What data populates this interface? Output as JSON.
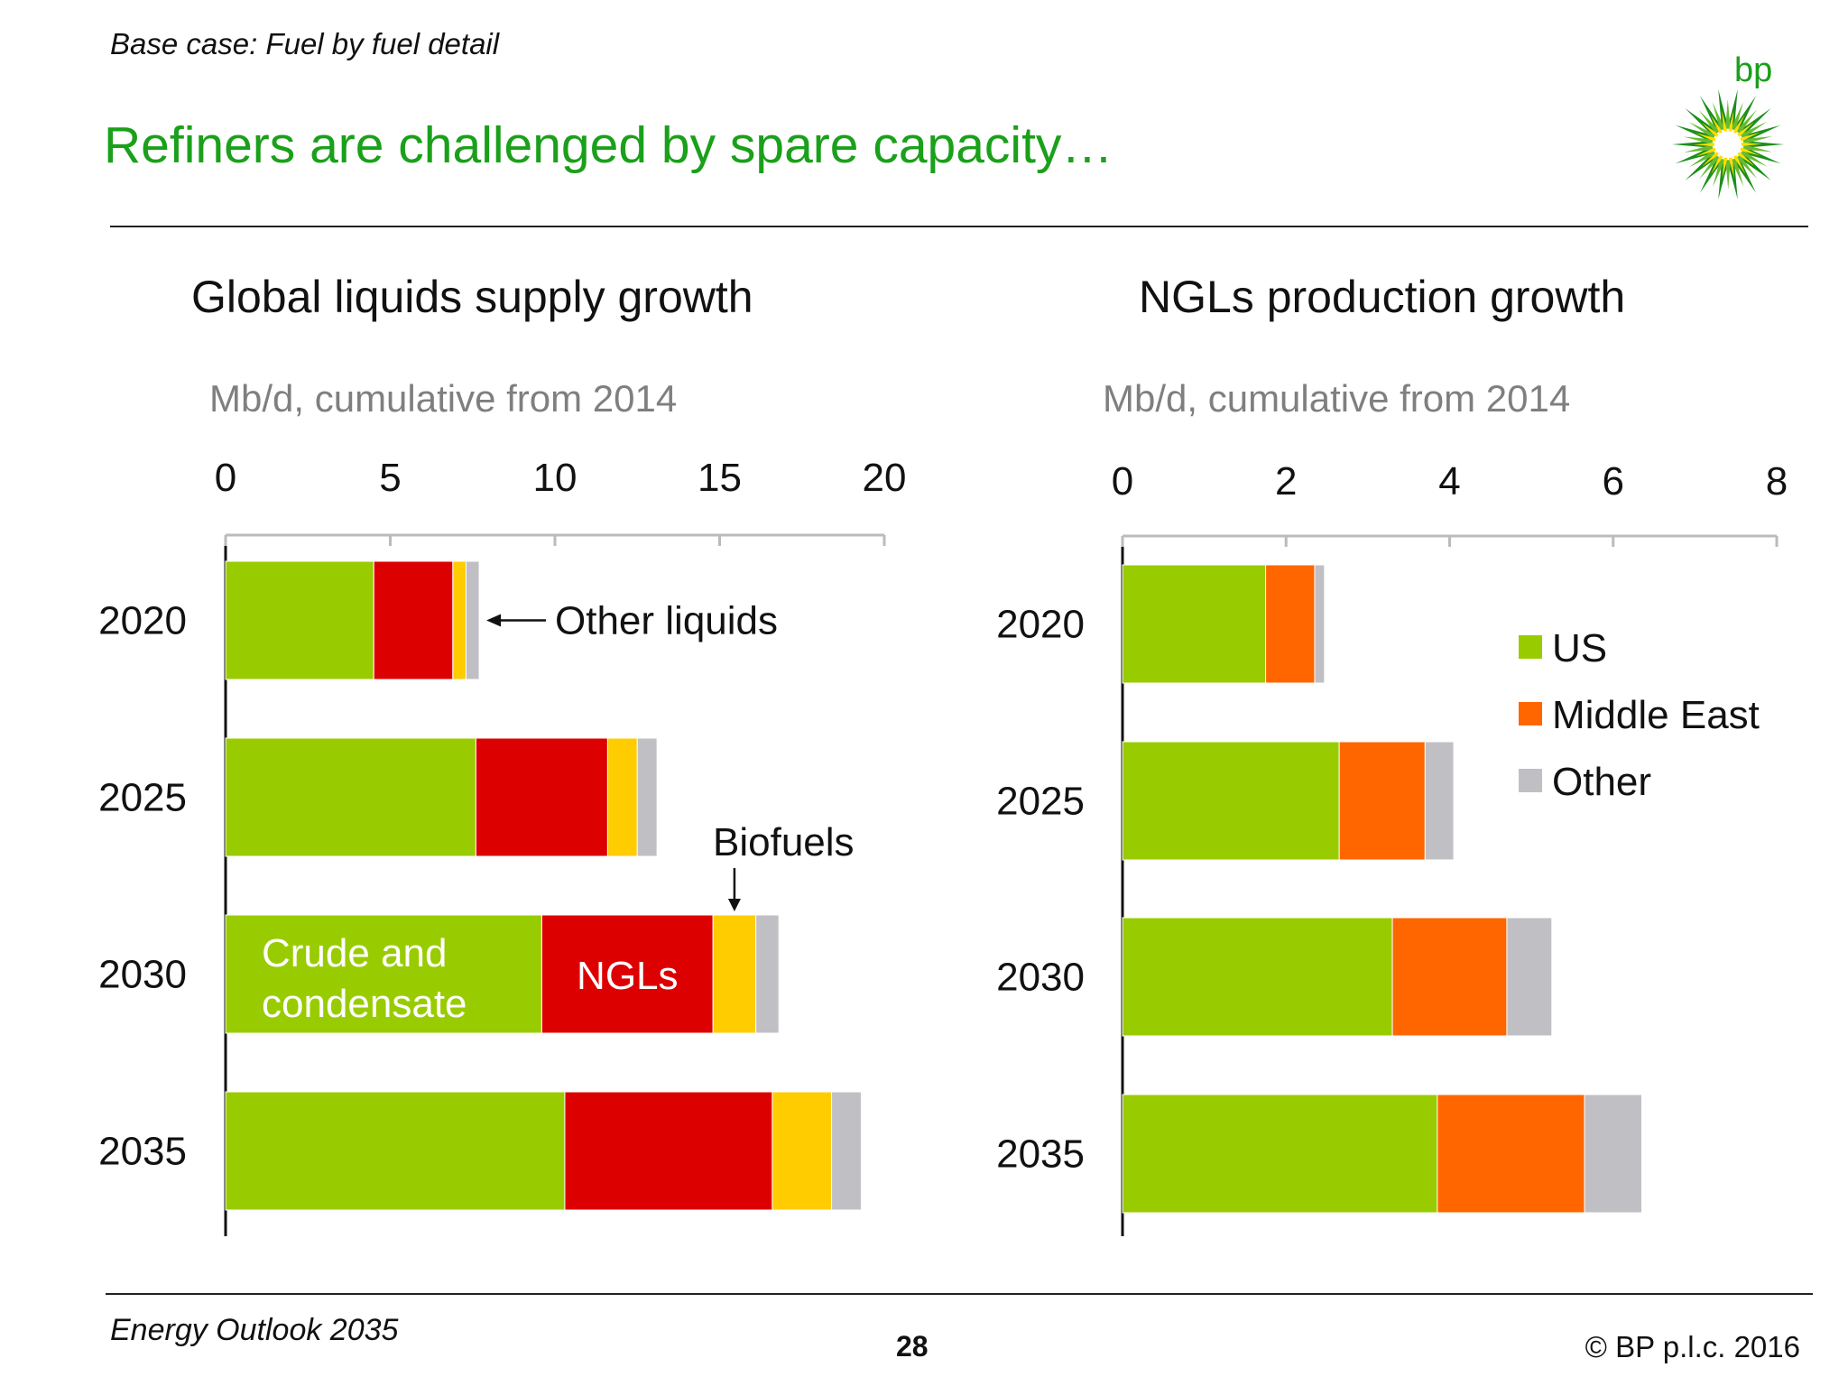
{
  "header": {
    "section": "Base case: Fuel by fuel detail",
    "title": "Refiners are challenged by spare capacity…",
    "logo_text": "bp"
  },
  "footer": {
    "left": "Energy Outlook 2035",
    "page": "28",
    "right": "© BP p.l.c. 2016"
  },
  "colors": {
    "green": "#99cc00",
    "red": "#dd0000",
    "yellow": "#ffcc00",
    "grey": "#c0bfc4",
    "orange": "#ff6600",
    "title_green": "#1aa01a"
  },
  "chart_data": [
    {
      "type": "bar",
      "orientation": "horizontal",
      "stacked": true,
      "title": "Global liquids supply growth",
      "unit_label": "Mb/d, cumulative from 2014",
      "categories": [
        "2020",
        "2025",
        "2030",
        "2035"
      ],
      "xlim": [
        0,
        20
      ],
      "xticks": [
        "0",
        "5",
        "10",
        "15",
        "20"
      ],
      "axis_position": "top",
      "series": [
        {
          "key": "crude",
          "values": [
            4.5,
            7.6,
            9.6,
            10.3
          ],
          "color": "#99cc00"
        },
        {
          "key": "ngls",
          "values": [
            2.4,
            4.0,
            5.2,
            6.3
          ],
          "color": "#dd0000"
        },
        {
          "key": "biofuels",
          "values": [
            0.4,
            0.9,
            1.3,
            1.8
          ],
          "color": "#ffcc00"
        },
        {
          "key": "other",
          "values": [
            0.4,
            0.6,
            0.7,
            0.9
          ],
          "color": "#c0bfc4"
        }
      ],
      "annotations": {
        "crude_line1": "Crude and",
        "crude_line2": "condensate",
        "ngls": "NGLs",
        "biofuels": "Biofuels",
        "other_liquids": "Other liquids"
      }
    },
    {
      "type": "bar",
      "orientation": "horizontal",
      "stacked": true,
      "title": "NGLs production growth",
      "unit_label": "Mb/d, cumulative from 2014",
      "categories": [
        "2020",
        "2025",
        "2030",
        "2035"
      ],
      "xlim": [
        0,
        8
      ],
      "xticks": [
        "0",
        "2",
        "4",
        "6",
        "8"
      ],
      "axis_position": "top",
      "legend_position": "right",
      "series": [
        {
          "name": "US",
          "values": [
            1.75,
            2.65,
            3.3,
            3.85
          ],
          "color": "#99cc00"
        },
        {
          "name": "Middle East",
          "values": [
            0.6,
            1.05,
            1.4,
            1.8
          ],
          "color": "#ff6600"
        },
        {
          "name": "Other",
          "values": [
            0.12,
            0.35,
            0.55,
            0.7
          ],
          "color": "#c0bfc4"
        }
      ]
    }
  ]
}
